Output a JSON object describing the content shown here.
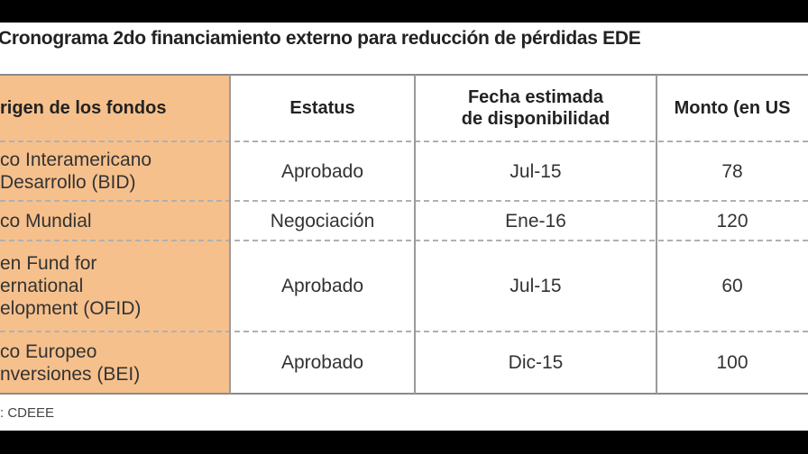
{
  "title": "Cronograma 2do financiamiento externo para reducción de pérdidas EDE",
  "table": {
    "header": [
      "rigen de los fondos",
      "Estatus",
      "Fecha estimada\nde disponibilidad",
      "Monto (en US"
    ],
    "rows": [
      [
        "co Interamericano\nDesarrollo (BID)",
        "Aprobado",
        "Jul-15",
        "78"
      ],
      [
        "co Mundial",
        "Negociación",
        "Ene-16",
        "120"
      ],
      [
        "en Fund for\nernational\nelopment (OFID)",
        "Aprobado",
        "Jul-15",
        "60"
      ],
      [
        "co Europeo\nnversiones (BEI)",
        "Aprobado",
        "Dic-15",
        "100"
      ]
    ]
  },
  "source": ": CDEEE"
}
